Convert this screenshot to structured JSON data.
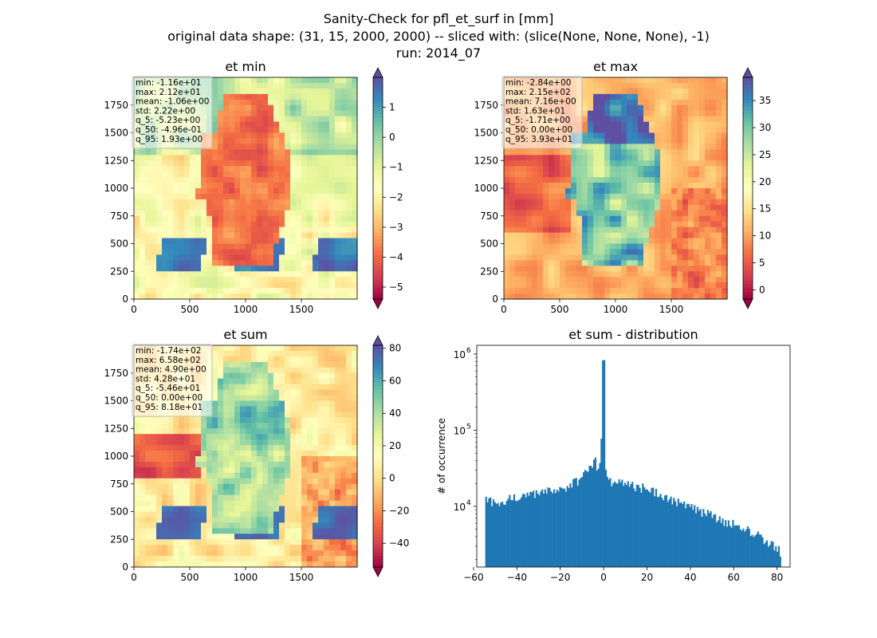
{
  "figure": {
    "title_lines": [
      "Sanity-Check for pfl_et_surf in [mm]",
      "original data shape: (31, 15, 2000, 2000) -- sliced with: (slice(None, None, None), -1)",
      "run: 2014_07"
    ]
  },
  "colors": {
    "hist_bar": "#1f77b4",
    "colormap": [
      "#9e0142",
      "#d53e4f",
      "#f46d43",
      "#fdae61",
      "#fee08b",
      "#ffffbf",
      "#e6f598",
      "#abdda4",
      "#66c2a5",
      "#3288bd",
      "#5e4fa2"
    ]
  },
  "panels": [
    {
      "title": "et min",
      "colorbar_ticks": [
        1,
        0,
        -1,
        -2,
        -3,
        -4,
        -5
      ],
      "colorbar_tick_labels": [
        "1",
        "0",
        "−1",
        "−2",
        "−3",
        "−4",
        "−5"
      ],
      "vmin": -5.4,
      "vmax": 2.0,
      "stats": [
        "min: -1.16e+01",
        "max: 2.12e+01",
        "mean: -1.06e+00",
        "std: 2.22e+00",
        "q_5: -5.23e+00",
        "q_50: -4.96e-01",
        "q_95: 1.93e+00"
      ]
    },
    {
      "title": "et max",
      "colorbar_ticks": [
        35,
        30,
        25,
        20,
        15,
        10,
        5,
        0
      ],
      "colorbar_tick_labels": [
        "35",
        "30",
        "25",
        "20",
        "15",
        "10",
        "5",
        "0"
      ],
      "vmin": -1.71,
      "vmax": 39.3,
      "stats": [
        "min: -2.84e+00",
        "max: 2.15e+02",
        "mean: 7.16e+00",
        "std: 1.63e+01",
        "q_5: -1.71e+00",
        "q_50: 0.00e+00",
        "q_95: 3.93e+01"
      ]
    },
    {
      "title": "et sum",
      "colorbar_ticks": [
        80,
        60,
        40,
        20,
        0,
        -20,
        -40
      ],
      "colorbar_tick_labels": [
        "80",
        "60",
        "40",
        "20",
        "0",
        "−20",
        "−40"
      ],
      "vmin": -54.6,
      "vmax": 81.8,
      "stats": [
        "min: -1.74e+02",
        "max: 6.58e+02",
        "mean: 4.90e+00",
        "std: 4.28e+01",
        "q_5: -5.46e+01",
        "q_50: 0.00e+00",
        "q_95: 8.18e+01"
      ]
    }
  ],
  "map_axes": {
    "x_ticks": [
      0,
      500,
      1000,
      1500
    ],
    "y_ticks": [
      0,
      250,
      500,
      750,
      1000,
      1250,
      1500,
      1750
    ],
    "xlim": [
      0,
      2000
    ],
    "ylim": [
      0,
      2000
    ]
  },
  "chart_data": [
    {
      "type": "heatmap",
      "title": "et min",
      "xlim": [
        0,
        2000
      ],
      "ylim": [
        0,
        2000
      ],
      "colorbar_range": [
        -5.4,
        2.0
      ],
      "grid": false
    },
    {
      "type": "heatmap",
      "title": "et max",
      "xlim": [
        0,
        2000
      ],
      "ylim": [
        0,
        2000
      ],
      "colorbar_range": [
        -1.71,
        39.3
      ],
      "grid": false
    },
    {
      "type": "heatmap",
      "title": "et sum",
      "xlim": [
        0,
        2000
      ],
      "ylim": [
        0,
        2000
      ],
      "colorbar_range": [
        -54.6,
        81.8
      ],
      "grid": false
    },
    {
      "type": "bar",
      "title": "et sum - distribution",
      "ylabel": "# of occurrence",
      "xlabel": "",
      "yscale": "log",
      "xlim": [
        -58.5,
        86
      ],
      "ylim": [
        1600,
        1300000
      ],
      "x_ticks": [
        -60,
        -40,
        -20,
        0,
        20,
        40,
        60,
        80
      ],
      "x_tick_labels": [
        "−60",
        "−40",
        "−20",
        "0",
        "20",
        "40",
        "60",
        "80"
      ],
      "y_ticks": [
        10000,
        100000,
        1000000
      ],
      "y_tick_labels": [
        "10",
        "10",
        "10"
      ],
      "y_tick_exponents": [
        "4",
        "5",
        "6"
      ],
      "bin_range": [
        -54.6,
        81.8
      ],
      "peak": {
        "x": 0,
        "count": 830000
      },
      "profile": [
        {
          "x": -54.6,
          "count": 12000
        },
        {
          "x": -50,
          "count": 11000
        },
        {
          "x": -40,
          "count": 13500
        },
        {
          "x": -30,
          "count": 15000
        },
        {
          "x": -20,
          "count": 17000
        },
        {
          "x": -15,
          "count": 19000
        },
        {
          "x": -10,
          "count": 24000
        },
        {
          "x": -6,
          "count": 33000
        },
        {
          "x": -4,
          "count": 40000
        },
        {
          "x": -2,
          "count": 26000
        },
        {
          "x": -1,
          "count": 90000
        },
        {
          "x": 1,
          "count": 30000
        },
        {
          "x": 3,
          "count": 21000
        },
        {
          "x": 10,
          "count": 20000
        },
        {
          "x": 20,
          "count": 17000
        },
        {
          "x": 30,
          "count": 13000
        },
        {
          "x": 40,
          "count": 10000
        },
        {
          "x": 50,
          "count": 7500
        },
        {
          "x": 60,
          "count": 5800
        },
        {
          "x": 70,
          "count": 4300
        },
        {
          "x": 78,
          "count": 3200
        },
        {
          "x": 81.8,
          "count": 2500
        }
      ]
    }
  ]
}
